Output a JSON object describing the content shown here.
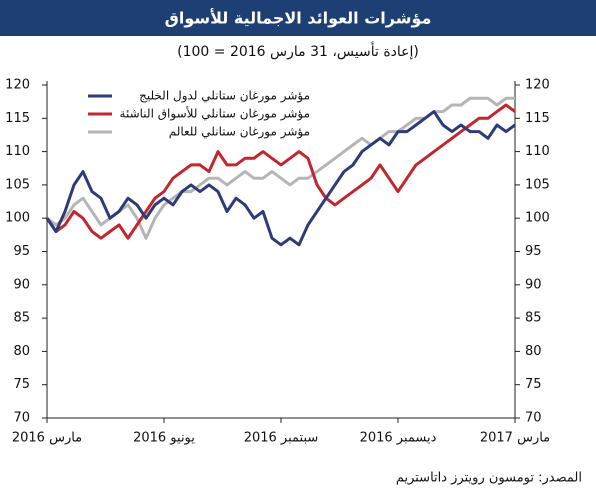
{
  "chart_data": {
    "type": "line",
    "title": "مؤشرات العوائد الاجمالية للأسواق",
    "subtitle": "(إعادة تأسيس، 31 مارس 2016 = 100)",
    "source": "المصدر: تومسون رويترز داتاستريم",
    "categories": [
      "مارس 2016",
      null,
      null,
      null,
      null,
      null,
      null,
      null,
      null,
      null,
      null,
      null,
      null,
      "يونيو 2016",
      null,
      null,
      null,
      null,
      null,
      null,
      null,
      null,
      null,
      null,
      null,
      null,
      "سبتمبر 2016",
      null,
      null,
      null,
      null,
      null,
      null,
      null,
      null,
      null,
      null,
      null,
      null,
      "ديسمبر 2016",
      null,
      null,
      null,
      null,
      null,
      null,
      null,
      null,
      null,
      null,
      null,
      null,
      "مارس 2017"
    ],
    "series": [
      {
        "name": "مؤشر مورغان ستانلي لدول الخليج",
        "color": "#2e3b7a",
        "values": [
          100,
          98,
          101,
          105,
          107,
          104,
          103,
          100,
          101,
          103,
          102,
          100,
          102,
          103,
          102,
          104,
          105,
          104,
          105,
          104,
          101,
          103,
          102,
          100,
          101,
          97,
          96,
          97,
          96,
          99,
          101,
          103,
          105,
          107,
          108,
          110,
          111,
          112,
          111,
          113,
          113,
          114,
          115,
          116,
          114,
          113,
          114,
          113,
          113,
          112,
          114,
          113,
          114
        ]
      },
      {
        "name": "مؤشر مورغان ستانلي للأسواق الناشئة",
        "color": "#c1272d",
        "values": [
          100,
          98,
          99,
          101,
          100,
          98,
          97,
          98,
          99,
          97,
          99,
          101,
          103,
          104,
          106,
          107,
          108,
          108,
          107,
          110,
          108,
          108,
          109,
          109,
          110,
          109,
          108,
          109,
          110,
          109,
          105,
          103,
          102,
          103,
          104,
          105,
          106,
          108,
          106,
          104,
          106,
          108,
          109,
          110,
          111,
          112,
          113,
          114,
          115,
          115,
          116,
          117,
          116
        ]
      },
      {
        "name": "مؤشر مورغان ستانلي للعالم",
        "color": "#b5b5b5",
        "values": [
          100,
          99,
          100,
          102,
          103,
          101,
          99,
          100,
          101,
          102,
          100,
          97,
          100,
          102,
          103,
          104,
          104,
          105,
          106,
          106,
          105,
          106,
          107,
          106,
          106,
          107,
          106,
          105,
          106,
          106,
          107,
          108,
          109,
          110,
          111,
          112,
          111,
          112,
          113,
          113,
          114,
          115,
          115,
          116,
          116,
          117,
          117,
          118,
          118,
          118,
          117,
          118,
          118
        ]
      }
    ],
    "ylim": [
      70,
      120
    ],
    "yticks": [
      70,
      75,
      80,
      85,
      90,
      95,
      100,
      105,
      110,
      115,
      120
    ],
    "y2lim": [
      70,
      120
    ],
    "y2ticks": [
      70,
      75,
      80,
      85,
      90,
      95,
      100,
      105,
      110,
      115,
      120
    ],
    "grid": false
  }
}
